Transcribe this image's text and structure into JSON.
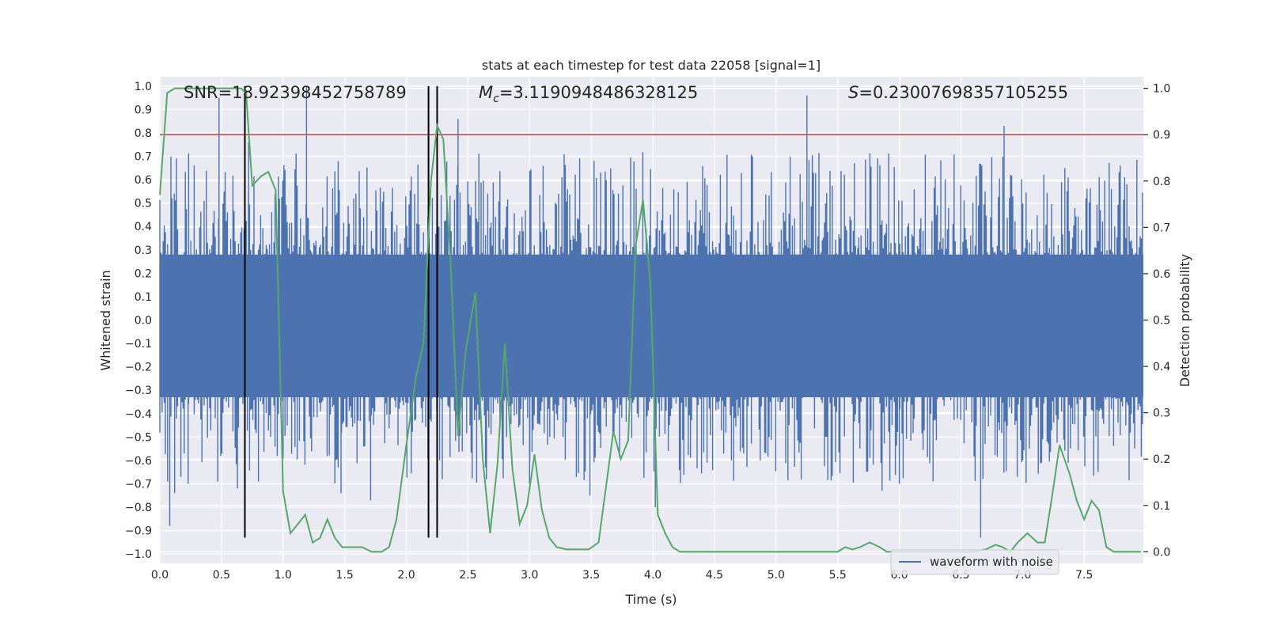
{
  "chart_data": {
    "type": "line",
    "title": "stats at each timestep for test data 22058 [signal=1]",
    "xlabel": "Time (s)",
    "ylabel": "Whitened strain",
    "y2label": "Detection probability",
    "xlim": [
      0.0,
      7.98
    ],
    "ylim": [
      -1.04,
      1.04
    ],
    "y2lim": [
      -0.025,
      1.025
    ],
    "xticks": [
      "0.0",
      "0.5",
      "1.0",
      "1.5",
      "2.0",
      "2.5",
      "3.0",
      "3.5",
      "4.0",
      "4.5",
      "5.0",
      "5.5",
      "6.0",
      "6.5",
      "7.0",
      "7.5"
    ],
    "yticks": [
      "1.0",
      "0.9",
      "0.8",
      "0.7",
      "0.6",
      "0.5",
      "0.4",
      "0.3",
      "0.2",
      "0.1",
      "0.0",
      "−0.1",
      "−0.2",
      "−0.3",
      "−0.4",
      "−0.5",
      "−0.6",
      "−0.7",
      "−0.8",
      "−0.9",
      "−1.0"
    ],
    "y2ticks": [
      "1.0",
      "0.9",
      "0.8",
      "0.7",
      "0.6",
      "0.5",
      "0.4",
      "0.3",
      "0.2",
      "0.1",
      "0.0"
    ],
    "annotations": {
      "snr": "SNR=18.92398452758789",
      "mc_symbol": "M",
      "mc_sub": "c",
      "mc_value": "=3.1190948486328125",
      "s_symbol": "S",
      "s_value": "=0.23007698357105255"
    },
    "legend": {
      "label": "waveform with noise",
      "position": "lower-right"
    },
    "colors": {
      "waveform": "#4c72b0",
      "probability": "#55a868",
      "threshold": "#c44e52",
      "markers": "#000000",
      "background": "#eaeaf2",
      "grid": "#ffffff"
    },
    "threshold_probability": 0.9,
    "vertical_markers_time": [
      0.69,
      2.18,
      2.25
    ],
    "marker_span_strain": [
      -0.93,
      1.0
    ],
    "waveform_envelope": {
      "description_fields": [
        "core_upper",
        "core_lower"
      ],
      "core_upper": 0.28,
      "core_lower": -0.33,
      "peak_spikes": [
        [
          0.08,
          -0.88
        ],
        [
          0.12,
          -0.74
        ],
        [
          0.23,
          -0.7
        ],
        [
          0.47,
          -0.69
        ],
        [
          0.48,
          0.95
        ],
        [
          0.63,
          -0.72
        ],
        [
          0.72,
          0.76
        ],
        [
          1.0,
          -0.59
        ],
        [
          1.19,
          1.0
        ],
        [
          1.47,
          -0.74
        ],
        [
          1.71,
          -0.77
        ],
        [
          2.27,
          -0.6
        ],
        [
          2.42,
          0.86
        ],
        [
          2.65,
          -0.68
        ],
        [
          3.0,
          -0.7
        ],
        [
          3.49,
          -0.75
        ],
        [
          4.02,
          -0.8
        ],
        [
          5.25,
          0.96
        ],
        [
          5.86,
          -0.73
        ],
        [
          6.0,
          -0.7
        ],
        [
          6.66,
          -0.93
        ],
        [
          6.85,
          0.83
        ]
      ]
    },
    "series": [
      {
        "name": "detection probability",
        "axis": "right",
        "x": [
          0.0,
          0.06,
          0.12,
          0.2,
          0.3,
          0.4,
          0.5,
          0.6,
          0.66,
          0.7,
          0.75,
          0.82,
          0.88,
          0.94,
          1.0,
          1.06,
          1.12,
          1.18,
          1.24,
          1.3,
          1.36,
          1.42,
          1.48,
          1.56,
          1.64,
          1.72,
          1.8,
          1.86,
          1.92,
          2.0,
          2.08,
          2.14,
          2.2,
          2.25,
          2.3,
          2.36,
          2.42,
          2.48,
          2.56,
          2.62,
          2.68,
          2.74,
          2.8,
          2.86,
          2.92,
          2.98,
          3.04,
          3.1,
          3.16,
          3.22,
          3.3,
          3.4,
          3.48,
          3.56,
          3.62,
          3.68,
          3.74,
          3.8,
          3.86,
          3.92,
          3.98,
          4.04,
          4.1,
          4.16,
          4.22,
          4.3,
          4.4,
          4.5,
          4.6,
          4.7,
          4.8,
          4.9,
          5.0,
          5.1,
          5.2,
          5.3,
          5.4,
          5.5,
          5.56,
          5.62,
          5.68,
          5.76,
          5.84,
          5.9,
          6.0,
          6.1,
          6.2,
          6.3,
          6.4,
          6.5,
          6.6,
          6.7,
          6.78,
          6.84,
          6.9,
          6.96,
          7.04,
          7.12,
          7.18,
          7.24,
          7.3,
          7.38,
          7.44,
          7.5,
          7.56,
          7.62,
          7.68,
          7.74,
          7.8,
          7.9,
          7.96
        ],
        "values": [
          0.77,
          0.99,
          1.0,
          1.0,
          1.0,
          1.0,
          1.0,
          1.0,
          1.0,
          0.99,
          0.79,
          0.81,
          0.82,
          0.78,
          0.13,
          0.04,
          0.06,
          0.08,
          0.02,
          0.03,
          0.07,
          0.03,
          0.01,
          0.01,
          0.01,
          0.0,
          0.0,
          0.01,
          0.07,
          0.23,
          0.38,
          0.45,
          0.8,
          0.92,
          0.89,
          0.62,
          0.25,
          0.43,
          0.56,
          0.2,
          0.04,
          0.19,
          0.45,
          0.18,
          0.06,
          0.1,
          0.21,
          0.09,
          0.03,
          0.01,
          0.005,
          0.005,
          0.005,
          0.02,
          0.14,
          0.26,
          0.2,
          0.24,
          0.66,
          0.76,
          0.58,
          0.08,
          0.04,
          0.01,
          0.0,
          0.0,
          0.0,
          0.0,
          0.0,
          0.0,
          0.0,
          0.0,
          0.0,
          0.0,
          0.0,
          0.0,
          0.0,
          0.0,
          0.01,
          0.005,
          0.01,
          0.02,
          0.01,
          0.0,
          0.0,
          0.0,
          0.0,
          0.0,
          0.0,
          0.0,
          0.0,
          0.005,
          0.015,
          0.01,
          0.0,
          0.02,
          0.04,
          0.02,
          0.02,
          0.12,
          0.23,
          0.17,
          0.11,
          0.07,
          0.11,
          0.09,
          0.01,
          0.0,
          0.0,
          0.0,
          0.0
        ]
      }
    ]
  }
}
